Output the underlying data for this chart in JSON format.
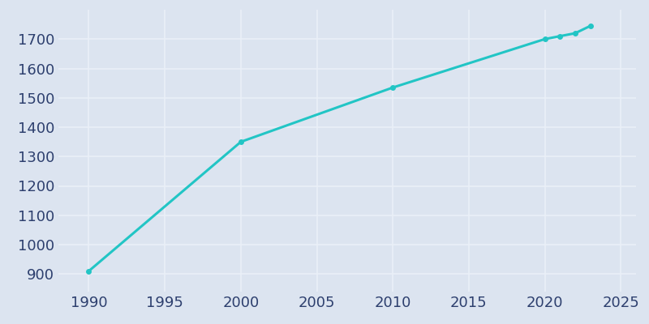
{
  "years": [
    1990,
    2000,
    2010,
    2020,
    2021,
    2022,
    2023
  ],
  "population": [
    910,
    1350,
    1535,
    1700,
    1710,
    1720,
    1745
  ],
  "line_color": "#22c5c5",
  "marker_color": "#22c5c5",
  "background_color": "#dce4f0",
  "plot_background_color": "#dce4f0",
  "grid_color": "#eaf0f8",
  "tick_color": "#2d3f6e",
  "label_color": "#2d3f6e",
  "xlim": [
    1988,
    2026
  ],
  "ylim": [
    840,
    1800
  ],
  "xticks": [
    1990,
    1995,
    2000,
    2005,
    2010,
    2015,
    2020,
    2025
  ],
  "yticks": [
    900,
    1000,
    1100,
    1200,
    1300,
    1400,
    1500,
    1600,
    1700
  ],
  "line_width": 2.2,
  "marker_size": 5,
  "tick_labelsize": 13
}
